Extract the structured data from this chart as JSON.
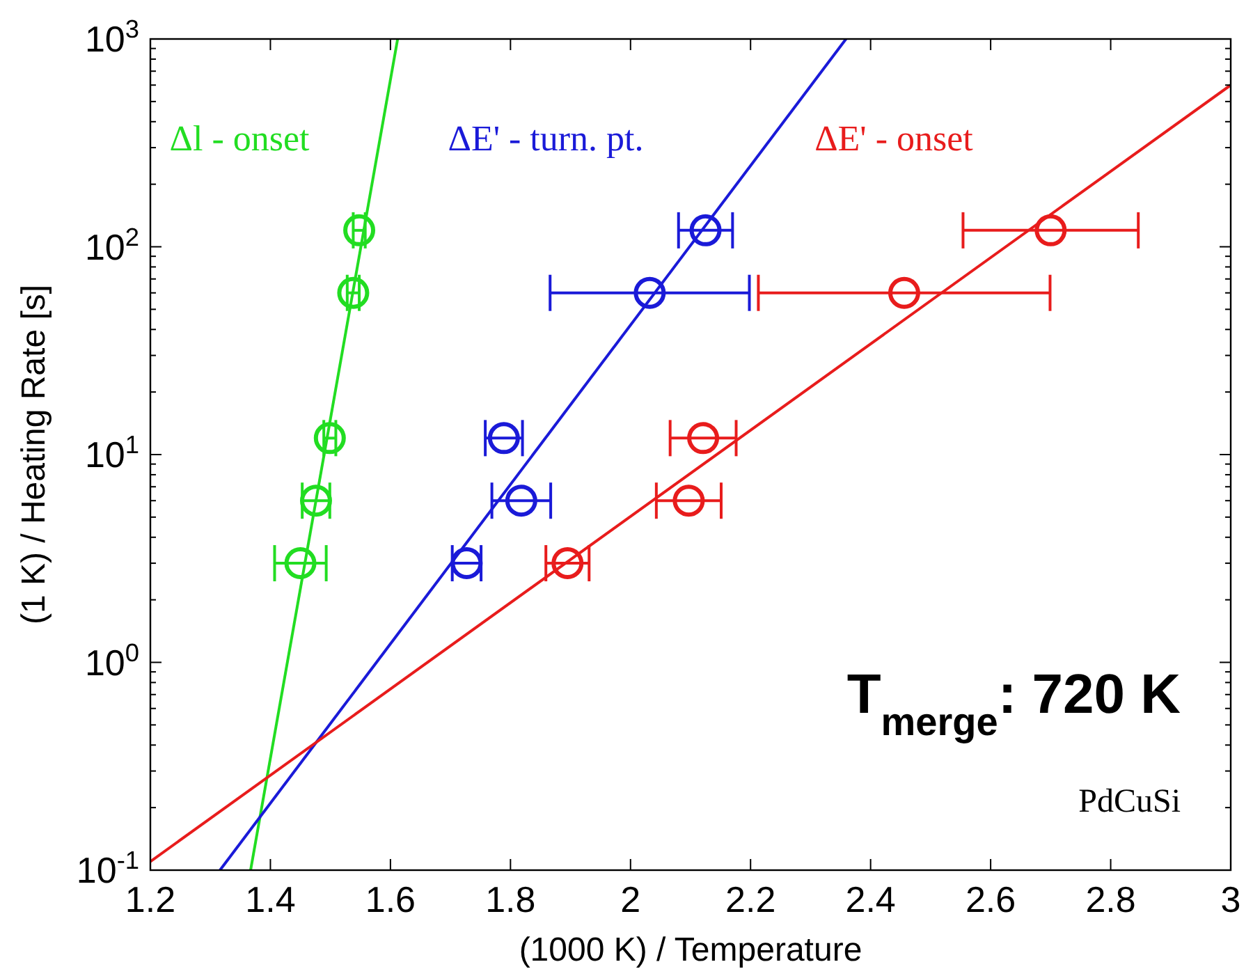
{
  "chart_data": {
    "type": "scatter",
    "xlabel": "(1000 K) / Temperature",
    "ylabel": "(1 K) / Heating Rate [s]",
    "log": "y",
    "xlim": [
      1.2,
      3
    ],
    "ylim": [
      0.1,
      1000
    ],
    "grid": false,
    "marker": "circle",
    "xticks": [
      1.2,
      1.4,
      1.6,
      1.8,
      2,
      2.2,
      2.4,
      2.6,
      2.8,
      3
    ],
    "yticks": [
      {
        "value": 0.1,
        "label": "10$^{-1}$"
      },
      {
        "value": 0.2,
        "label": null
      },
      {
        "value": 0.3,
        "label": null
      },
      {
        "value": 0.4,
        "label": null
      },
      {
        "value": 0.5,
        "label": null
      },
      {
        "value": 0.6,
        "label": null
      },
      {
        "value": 0.7,
        "label": null
      },
      {
        "value": 0.8,
        "label": null
      },
      {
        "value": 0.9,
        "label": null
      },
      {
        "value": 1,
        "label": "10$^{0}$"
      },
      {
        "value": 2,
        "label": null
      },
      {
        "value": 3,
        "label": null
      },
      {
        "value": 4,
        "label": null
      },
      {
        "value": 5,
        "label": null
      },
      {
        "value": 6,
        "label": null
      },
      {
        "value": 7,
        "label": null
      },
      {
        "value": 8,
        "label": null
      },
      {
        "value": 9,
        "label": null
      },
      {
        "value": 10,
        "label": "10$^{1}$"
      },
      {
        "value": 20,
        "label": null
      },
      {
        "value": 30,
        "label": null
      },
      {
        "value": 40,
        "label": null
      },
      {
        "value": 50,
        "label": null
      },
      {
        "value": 60,
        "label": null
      },
      {
        "value": 70,
        "label": null
      },
      {
        "value": 80,
        "label": null
      },
      {
        "value": 90,
        "label": null
      },
      {
        "value": 100,
        "label": "10$^{2}$"
      },
      {
        "value": 200,
        "label": null
      },
      {
        "value": 300,
        "label": null
      },
      {
        "value": 400,
        "label": null
      },
      {
        "value": 500,
        "label": null
      },
      {
        "value": 600,
        "label": null
      },
      {
        "value": 700,
        "label": null
      },
      {
        "value": 800,
        "label": null
      },
      {
        "value": 900,
        "label": null
      },
      {
        "value": 1000,
        "label": "10$^{3}$"
      }
    ],
    "annotations": [
      "T$_{merge}$: 720 K",
      "PdCuSi"
    ],
    "series": [
      {
        "name": "Δl - onset",
        "type": "scatter",
        "color": "#22dd22",
        "x": [
          1.45,
          1.476,
          1.499,
          1.538,
          1.548
        ],
        "values": [
          3,
          6,
          12,
          60,
          120
        ],
        "xerrors": [
          0.043,
          0.023,
          0.01,
          0.01,
          0.01
        ]
      },
      {
        "name": "ΔE' - turn. pt.",
        "type": "scatter",
        "color": "#1a1ad8",
        "x": [
          1.727,
          1.818,
          1.789,
          2.032,
          2.125
        ],
        "values": [
          3,
          6,
          12,
          60,
          120
        ],
        "xerrors": [
          0.024,
          0.049,
          0.031,
          0.166,
          0.045
        ]
      },
      {
        "name": "ΔE' - onset",
        "type": "scatter",
        "color": "#e81c1c",
        "x": [
          1.895,
          2.097,
          2.121,
          2.456,
          2.7
        ],
        "values": [
          3,
          6,
          12,
          60,
          120
        ],
        "xerrors": [
          0.036,
          0.054,
          0.055,
          0.243,
          0.146
        ]
      },
      {
        "type": "line",
        "color": "#22dd22",
        "x": [
          1.367,
          1.612
        ],
        "values": [
          0.1,
          1000
        ],
        "marker": "none",
        "line_style": "solid"
      },
      {
        "type": "line",
        "color": "#1a1ad8",
        "x": [
          1.316,
          2.359
        ],
        "values": [
          0.1,
          1000
        ],
        "marker": "none",
        "line_style": "solid"
      },
      {
        "type": "line",
        "color": "#e81c1c",
        "x": [
          1.2,
          3
        ],
        "values": [
          0.11,
          600
        ],
        "marker": "none",
        "line_style": "solid"
      }
    ]
  }
}
